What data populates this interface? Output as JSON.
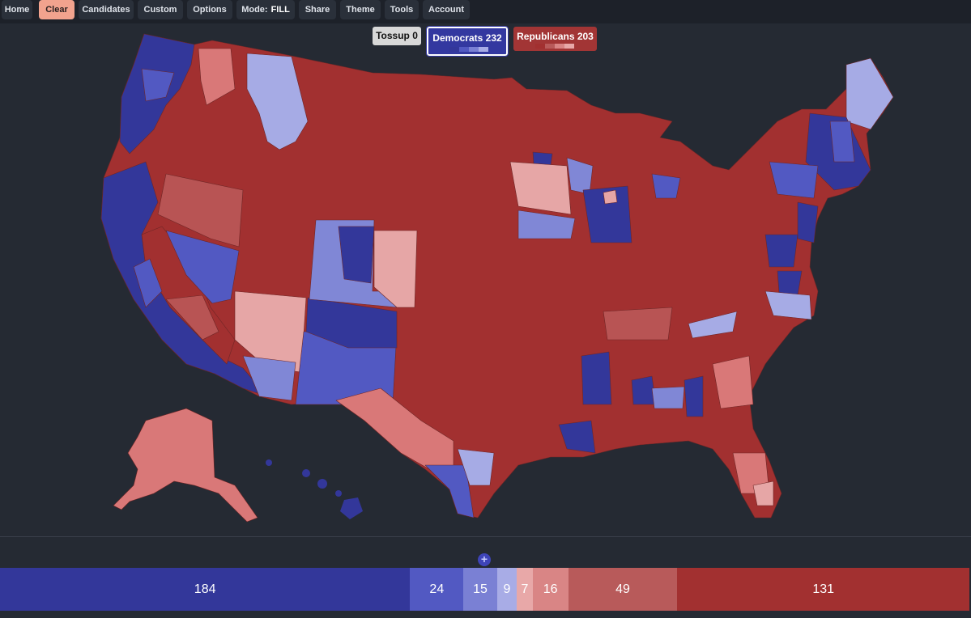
{
  "nav": {
    "home": "Home",
    "clear": "Clear",
    "candidates": "Candidates",
    "custom": "Custom",
    "options": "Options",
    "mode_label": "Mode:",
    "mode_value": "FILL",
    "share": "Share",
    "theme": "Theme",
    "tools": "Tools",
    "account": "Account"
  },
  "legend": {
    "tossup": "Tossup 0",
    "democrats": "Democrats 232",
    "republicans": "Republicans 203"
  },
  "colors": {
    "safe_d": "#33379a",
    "likely_d": "#5259c2",
    "lean_d": "#8087d6",
    "tilt_d": "#a6abe5",
    "tilt_r": "#e6a6a6",
    "lean_r": "#d97878",
    "likely_r": "#b85454",
    "safe_r": "#a23030",
    "tossup": "#d8d8d8",
    "background": "#252a33"
  },
  "seat_bar": [
    {
      "label": "184",
      "value": 184,
      "color": "#33379a"
    },
    {
      "label": "24",
      "value": 24,
      "color": "#5259c2"
    },
    {
      "label": "15",
      "value": 15,
      "color": "#7a80d4"
    },
    {
      "label": "9",
      "value": 9,
      "color": "#a8ace6"
    },
    {
      "label": "7",
      "value": 7,
      "color": "#e8a8a8"
    },
    {
      "label": "16",
      "value": 16,
      "color": "#d98585"
    },
    {
      "label": "49",
      "value": 49,
      "color": "#b85a5a"
    },
    {
      "label": "131",
      "value": 131,
      "color": "#a23030"
    }
  ],
  "majority_marker": "+"
}
